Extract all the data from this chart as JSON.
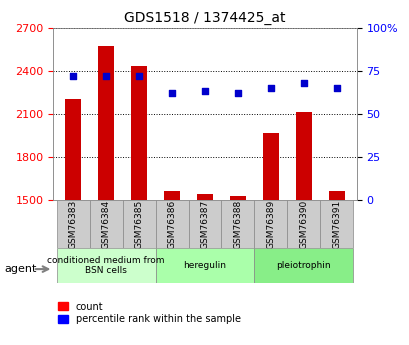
{
  "title": "GDS1518 / 1374425_at",
  "samples": [
    "GSM76383",
    "GSM76384",
    "GSM76385",
    "GSM76386",
    "GSM76387",
    "GSM76388",
    "GSM76389",
    "GSM76390",
    "GSM76391"
  ],
  "counts": [
    2200,
    2570,
    2430,
    1560,
    1545,
    1530,
    1970,
    2110,
    1560
  ],
  "percentiles": [
    72,
    72,
    72,
    62,
    63,
    62,
    65,
    68,
    65
  ],
  "groups": [
    {
      "label": "conditioned medium from\nBSN cells",
      "start": 0,
      "end": 3,
      "color": "#ccffcc"
    },
    {
      "label": "heregulin",
      "start": 3,
      "end": 6,
      "color": "#aaffaa"
    },
    {
      "label": "pleiotrophin",
      "start": 6,
      "end": 9,
      "color": "#88ee88"
    }
  ],
  "ylim_left": [
    1500,
    2700
  ],
  "ylim_right": [
    0,
    100
  ],
  "yticks_left": [
    1500,
    1800,
    2100,
    2400,
    2700
  ],
  "yticks_right": [
    0,
    25,
    50,
    75,
    100
  ],
  "ytick_labels_right": [
    "0",
    "25",
    "50",
    "75",
    "100%"
  ],
  "bar_color": "#cc0000",
  "dot_color": "#0000cc",
  "bar_width": 0.5,
  "baseline": 1500,
  "grid_color": "#000000",
  "bg_color": "#e8e8e8",
  "plot_bg": "#ffffff"
}
